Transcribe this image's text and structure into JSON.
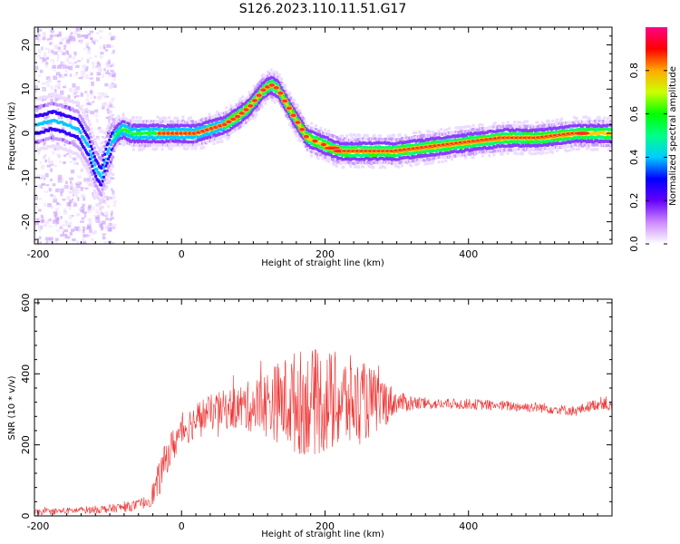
{
  "title": "S126.2023.110.11.51.G17",
  "chart_data": [
    {
      "type": "heatmap",
      "xlabel": "Height of straight line (km)",
      "ylabel": "Frequency (Hz)",
      "xlim": [
        -205,
        600
      ],
      "ylim": [
        -25,
        24
      ],
      "x_ticks": [
        "-200",
        "0",
        "200",
        "400"
      ],
      "y_ticks": [
        "20",
        "10",
        "0",
        "-10",
        "-20"
      ],
      "ridge": {
        "x": [
          -200,
          -180,
          -160,
          -145,
          -130,
          -120,
          -112,
          -105,
          -98,
          -90,
          -82,
          -70,
          -50,
          -20,
          0,
          20,
          40,
          60,
          80,
          95,
          105,
          115,
          125,
          135,
          145,
          160,
          175,
          190,
          205,
          220,
          250,
          300,
          350,
          400,
          450,
          500,
          550,
          600
        ],
        "y": [
          2,
          3,
          2,
          1,
          -3,
          -8,
          -10,
          -5,
          -2,
          0,
          1,
          0,
          0,
          0,
          0,
          0,
          1,
          2,
          4,
          6,
          8,
          10,
          11,
          10,
          7,
          3,
          -1,
          -2,
          -3,
          -4,
          -4,
          -4,
          -3,
          -2,
          -1,
          -1,
          0,
          0
        ]
      },
      "colorbar": {
        "label": "Normalized spectral amplitude",
        "ticks": [
          "0.0",
          "0.2",
          "0.4",
          "0.6",
          "0.8"
        ],
        "range": [
          0,
          1
        ],
        "colors": [
          "#ffffff",
          "#cc88ff",
          "#6600ff",
          "#0000ff",
          "#00ccff",
          "#00ff88",
          "#00ff00",
          "#ccff00",
          "#ffaa00",
          "#ff0000",
          "#ff0088"
        ]
      }
    },
    {
      "type": "line",
      "xlabel": "Height of straight line (km)",
      "ylabel": "SNR (10 * v/v)",
      "xlim": [
        -205,
        600
      ],
      "ylim": [
        0,
        610
      ],
      "x_ticks": [
        "-200",
        "0",
        "200",
        "400"
      ],
      "y_ticks": [
        "600",
        "400",
        "200",
        "0"
      ],
      "color": "#ee3333",
      "envelope": {
        "x": [
          -205,
          -150,
          -100,
          -60,
          -45,
          -35,
          -20,
          0,
          30,
          60,
          100,
          130,
          160,
          200,
          240,
          280,
          300,
          350,
          400,
          450,
          500,
          550,
          570,
          590,
          600
        ],
        "mean": [
          10,
          15,
          20,
          30,
          45,
          80,
          170,
          240,
          285,
          300,
          310,
          320,
          320,
          320,
          320,
          320,
          320,
          315,
          315,
          310,
          305,
          295,
          310,
          320,
          300
        ],
        "amp": [
          8,
          10,
          12,
          15,
          20,
          50,
          50,
          50,
          50,
          55,
          75,
          110,
          150,
          150,
          130,
          80,
          30,
          15,
          15,
          15,
          15,
          15,
          15,
          20,
          20
        ]
      }
    }
  ]
}
